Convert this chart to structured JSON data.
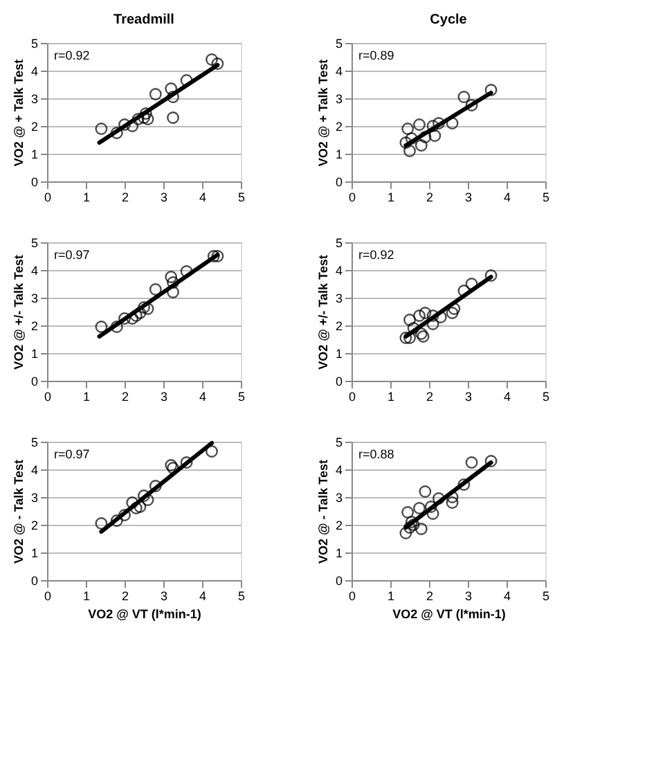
{
  "chart_data": [
    {
      "type": "scatter",
      "title": "Treadmill",
      "ylabel": "VO2 @ + Talk Test",
      "annotations": [
        "r=0.92"
      ],
      "xlim": [
        0,
        5
      ],
      "ylim": [
        0,
        5
      ],
      "xticks": [
        0,
        1,
        2,
        3,
        4,
        5
      ],
      "yticks": [
        0,
        1,
        2,
        3,
        4,
        5
      ],
      "grid": "y",
      "series": [
        {
          "type": "scatter",
          "marker": "circle",
          "color": "#000000",
          "x": [
            1.4,
            1.8,
            2.0,
            2.2,
            2.35,
            2.5,
            2.55,
            2.6,
            2.8,
            3.2,
            3.25,
            3.25,
            3.6,
            4.25,
            4.4
          ],
          "values": [
            1.9,
            1.75,
            2.05,
            2.0,
            2.25,
            2.3,
            2.45,
            2.25,
            3.15,
            3.35,
            3.05,
            2.3,
            3.65,
            4.4,
            4.25
          ]
        },
        {
          "type": "line",
          "marker": "none",
          "color": "#000000",
          "x": [
            1.35,
            4.4
          ],
          "values": [
            1.4,
            4.2
          ]
        }
      ]
    },
    {
      "type": "scatter",
      "title": "Cycle",
      "ylabel": "VO2 @ + Talk Test",
      "annotations": [
        "r=0.89"
      ],
      "xlim": [
        0,
        5
      ],
      "ylim": [
        0,
        5
      ],
      "xticks": [
        0,
        1,
        2,
        3,
        4,
        5
      ],
      "yticks": [
        0,
        1,
        2,
        3,
        4,
        5
      ],
      "grid": "y",
      "series": [
        {
          "type": "scatter",
          "marker": "circle",
          "color": "#000000",
          "x": [
            1.4,
            1.45,
            1.5,
            1.55,
            1.75,
            1.8,
            1.9,
            2.1,
            2.15,
            2.25,
            2.6,
            2.9,
            3.1,
            3.6
          ],
          "values": [
            1.4,
            1.9,
            1.1,
            1.55,
            2.05,
            1.3,
            1.6,
            2.0,
            1.65,
            2.1,
            2.1,
            3.05,
            2.75,
            3.3
          ]
        },
        {
          "type": "line",
          "marker": "none",
          "color": "#000000",
          "x": [
            1.4,
            3.6
          ],
          "values": [
            1.3,
            3.2
          ]
        }
      ]
    },
    {
      "type": "scatter",
      "ylabel": "VO2 @ +/- Talk Test",
      "annotations": [
        "r=0.97"
      ],
      "xlim": [
        0,
        5
      ],
      "ylim": [
        0,
        5
      ],
      "xticks": [
        0,
        1,
        2,
        3,
        4,
        5
      ],
      "yticks": [
        0,
        1,
        2,
        3,
        4,
        5
      ],
      "grid": "y",
      "series": [
        {
          "type": "scatter",
          "marker": "circle",
          "color": "#000000",
          "x": [
            1.4,
            1.8,
            2.0,
            2.2,
            2.3,
            2.4,
            2.5,
            2.6,
            2.8,
            3.2,
            3.25,
            3.25,
            3.6,
            4.3,
            4.4
          ],
          "values": [
            1.95,
            1.95,
            2.25,
            2.25,
            2.35,
            2.45,
            2.65,
            2.6,
            3.3,
            3.75,
            3.55,
            3.2,
            3.95,
            4.5,
            4.5
          ]
        },
        {
          "type": "line",
          "marker": "none",
          "color": "#000000",
          "x": [
            1.35,
            4.4
          ],
          "values": [
            1.6,
            4.55
          ]
        }
      ]
    },
    {
      "type": "scatter",
      "ylabel": "VO2 @ +/- Talk Test",
      "annotations": [
        "r=0.92"
      ],
      "xlim": [
        0,
        5
      ],
      "ylim": [
        0,
        5
      ],
      "xticks": [
        0,
        1,
        2,
        3,
        4,
        5
      ],
      "yticks": [
        0,
        1,
        2,
        3,
        4,
        5
      ],
      "grid": "y",
      "series": [
        {
          "type": "scatter",
          "marker": "circle",
          "color": "#000000",
          "x": [
            1.4,
            1.5,
            1.5,
            1.6,
            1.75,
            1.8,
            1.85,
            1.9,
            2.1,
            2.1,
            2.3,
            2.6,
            2.65,
            2.9,
            3.1,
            3.6
          ],
          "values": [
            1.55,
            2.2,
            1.55,
            1.9,
            2.35,
            1.7,
            1.6,
            2.45,
            2.05,
            2.35,
            2.3,
            2.45,
            2.6,
            3.25,
            3.5,
            3.8
          ]
        },
        {
          "type": "line",
          "marker": "none",
          "color": "#000000",
          "x": [
            1.4,
            3.6
          ],
          "values": [
            1.6,
            3.75
          ]
        }
      ]
    },
    {
      "type": "scatter",
      "ylabel": "VO2 @ - Talk Test",
      "xlabel": "VO2 @ VT (l*min-1)",
      "annotations": [
        "r=0.97"
      ],
      "xlim": [
        0,
        5
      ],
      "ylim": [
        0,
        5
      ],
      "xticks": [
        0,
        1,
        2,
        3,
        4,
        5
      ],
      "yticks": [
        0,
        1,
        2,
        3,
        4,
        5
      ],
      "grid": "y",
      "series": [
        {
          "type": "scatter",
          "marker": "circle",
          "color": "#000000",
          "x": [
            1.4,
            1.8,
            2.0,
            2.2,
            2.3,
            2.4,
            2.5,
            2.6,
            2.8,
            3.2,
            3.25,
            3.6,
            4.25
          ],
          "values": [
            2.05,
            2.15,
            2.35,
            2.8,
            2.6,
            2.65,
            3.05,
            2.9,
            3.4,
            4.15,
            4.05,
            4.25,
            4.65
          ]
        },
        {
          "type": "line",
          "marker": "none",
          "color": "#000000",
          "x": [
            1.4,
            4.25
          ],
          "values": [
            1.75,
            4.95
          ]
        }
      ]
    },
    {
      "type": "scatter",
      "ylabel": "VO2 @ - Talk Test",
      "xlabel": "VO2 @ VT (l*min-1)",
      "annotations": [
        "r=0.88"
      ],
      "xlim": [
        0,
        5
      ],
      "ylim": [
        0,
        5
      ],
      "xticks": [
        0,
        1,
        2,
        3,
        4,
        5
      ],
      "yticks": [
        0,
        1,
        2,
        3,
        4,
        5
      ],
      "grid": "y",
      "series": [
        {
          "type": "scatter",
          "marker": "circle",
          "color": "#000000",
          "x": [
            1.4,
            1.45,
            1.5,
            1.55,
            1.6,
            1.75,
            1.8,
            1.9,
            2.05,
            2.1,
            2.25,
            2.6,
            2.6,
            2.9,
            3.1,
            3.6
          ],
          "values": [
            1.7,
            2.45,
            1.9,
            2.1,
            2.0,
            2.6,
            1.85,
            3.2,
            2.65,
            2.4,
            2.95,
            3.0,
            2.8,
            3.45,
            4.25,
            4.3
          ]
        },
        {
          "type": "line",
          "marker": "none",
          "color": "#000000",
          "x": [
            1.4,
            3.6
          ],
          "values": [
            1.9,
            4.25
          ]
        }
      ]
    }
  ]
}
